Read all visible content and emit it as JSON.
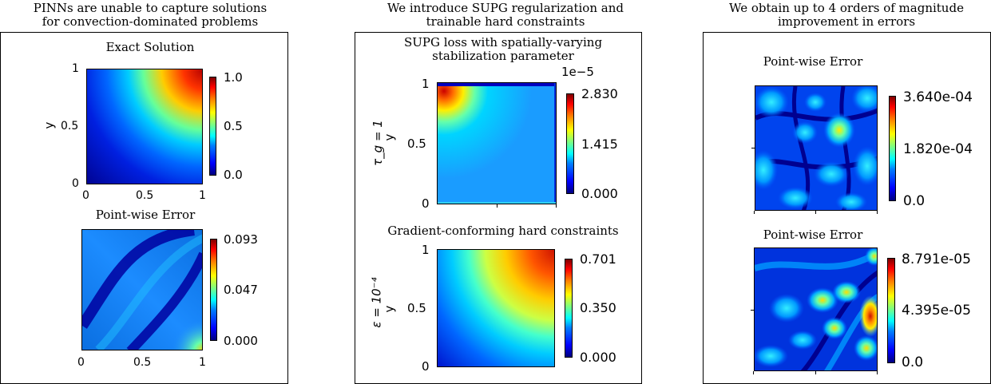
{
  "panels": [
    {
      "title_line1": "PINNs are unable to capture solutions",
      "title_line2": "for convection-dominated problems",
      "top": {
        "title": "Exact Solution",
        "ylabel": "y",
        "yticks": [
          "1",
          "0.5",
          "0"
        ],
        "xticks": [
          "0",
          "0.5",
          "1"
        ],
        "colorbar": [
          "1.0",
          "0.5",
          "0.0"
        ]
      },
      "bottom": {
        "title": "Point-wise Error",
        "xticks": [
          "0",
          "0.5",
          "1"
        ],
        "colorbar": [
          "0.093",
          "0.047",
          "0.000"
        ]
      }
    },
    {
      "title_line1": "We introduce SUPG regularization and",
      "title_line2": "trainable hard constraints",
      "top": {
        "title_line1": "SUPG loss with spatially-varying",
        "title_line2": "stabilization parameter",
        "row_label": "τ_g = 1",
        "ylabel": "y",
        "yticks": [
          "1",
          "0.5",
          "0"
        ],
        "colorbar_scale": "1e−5",
        "colorbar": [
          "2.830",
          "1.415",
          "0.000"
        ]
      },
      "bottom": {
        "title": "Gradient-conforming hard constraints",
        "row_label": "ε = 10⁻⁴",
        "ylabel": "y",
        "yticks": [
          "1",
          "0.5",
          "0"
        ],
        "colorbar": [
          "0.701",
          "0.350",
          "0.000"
        ]
      }
    },
    {
      "title_line1": "We obtain up to 4 orders of magnitude",
      "title_line2": "improvement in errors",
      "top": {
        "title": "Point-wise Error",
        "colorbar": [
          "3.640e-04",
          "1.820e-04",
          "0.0"
        ]
      },
      "bottom": {
        "title": "Point-wise Error",
        "colorbar": [
          "8.791e-05",
          "4.395e-05",
          "0.0"
        ]
      }
    }
  ]
}
